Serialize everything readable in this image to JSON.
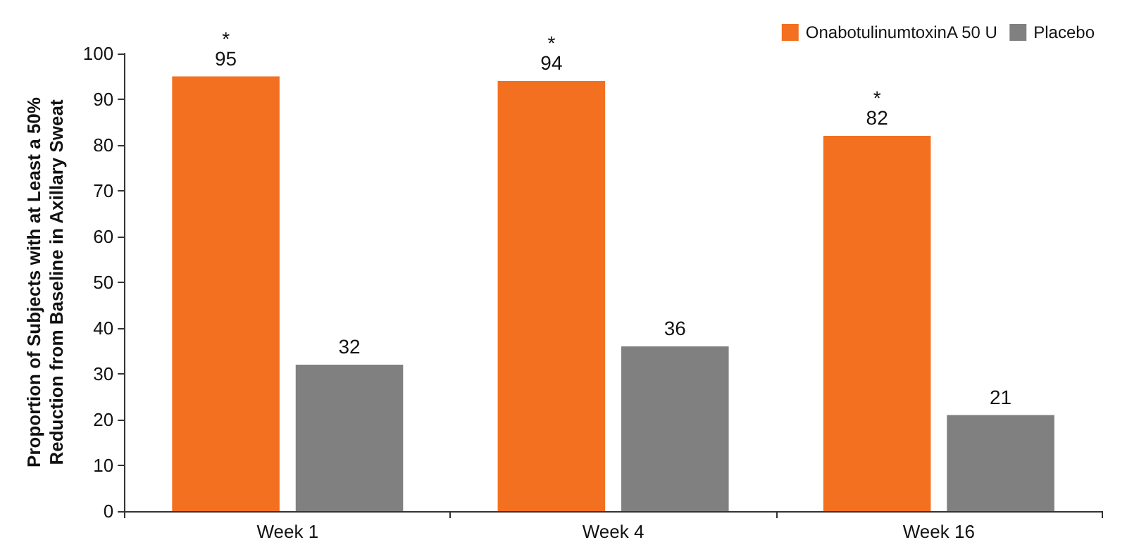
{
  "chart_data": {
    "type": "bar",
    "ylabel": "Proportion of Subjects with at Least a 50%\nReduction from Baseline in Axillary Sweat",
    "categories": [
      "Week 1",
      "Week 4",
      "Week 16"
    ],
    "series": [
      {
        "name": "OnabotulinumtoxinA 50 U",
        "color": "#f37021",
        "values": [
          95,
          94,
          82
        ]
      },
      {
        "name": "Placebo",
        "color": "#808080",
        "values": [
          32,
          36,
          21
        ]
      }
    ],
    "ylim": [
      0,
      100
    ],
    "yticks": [
      0,
      10,
      20,
      30,
      40,
      50,
      60,
      70,
      80,
      90,
      100
    ],
    "grid": false,
    "legend": "top right",
    "data_labels": true,
    "annotations": [
      "*",
      "*",
      "*"
    ]
  }
}
